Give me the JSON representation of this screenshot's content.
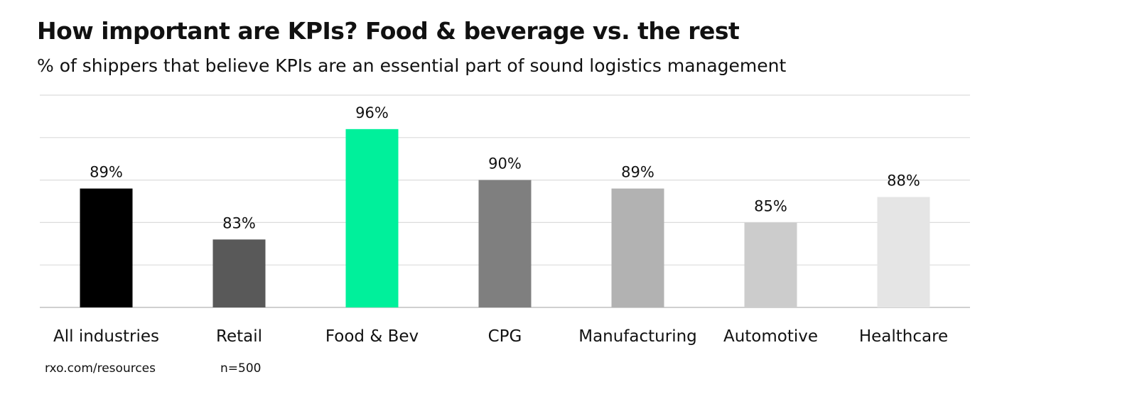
{
  "chart_data": {
    "type": "bar",
    "title": "How important are KPIs? Food & beverage vs. the rest",
    "subtitle": "% of shippers that believe KPIs are an essential part of sound logistics management",
    "categories": [
      "All industries",
      "Retail",
      "Food & Bev",
      "CPG",
      "Manufacturing",
      "Automotive",
      "Healthcare"
    ],
    "values": [
      89,
      83,
      96,
      90,
      89,
      85,
      88
    ],
    "labels": [
      "89%",
      "83%",
      "96%",
      "90%",
      "89%",
      "85%",
      "88%"
    ],
    "colors": [
      "#000000",
      "#595959",
      "#00f09b",
      "#7f7f7f",
      "#b2b2b2",
      "#cccccc",
      "#e5e5e5"
    ],
    "ylim": [
      75,
      100
    ],
    "ygrid_step": 5,
    "grid": true,
    "xlabel": "",
    "ylabel": ""
  },
  "footer": {
    "source": "rxo.com/resources",
    "sample": "n=500"
  }
}
